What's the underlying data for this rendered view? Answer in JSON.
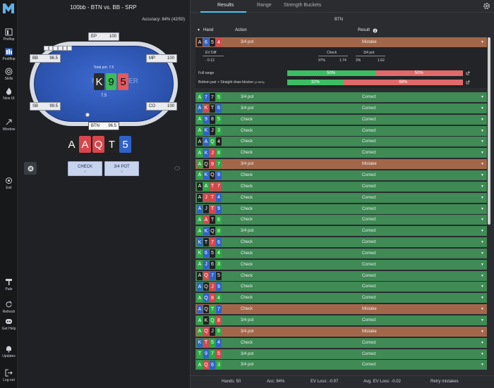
{
  "sidebar": {
    "items": [
      {
        "label": "Preflop",
        "icon": "preflop-icon"
      },
      {
        "label": "Postflop",
        "icon": "postflop-icon"
      },
      {
        "label": "Skills",
        "icon": "skills-icon"
      },
      {
        "label": "New UI",
        "icon": "flame-icon"
      },
      {
        "label": "Window",
        "icon": "window-icon"
      },
      {
        "label": "Exit",
        "icon": "exit-icon"
      },
      {
        "label": "Pale",
        "icon": "brush-icon"
      },
      {
        "label": "Refresh",
        "icon": "refresh-icon"
      },
      {
        "label": "Get Help",
        "icon": "discord-icon"
      },
      {
        "label": "Updates",
        "icon": "bell-icon"
      },
      {
        "label": "Log out",
        "icon": "logout-icon"
      }
    ]
  },
  "left": {
    "title": "100bb - BTN vs. BB - SRP",
    "accuracy_label": "Accuracy:",
    "accuracy_value": "84% (42/50)",
    "pot_label": "Total pot: 7.5",
    "pot_size": "7.5",
    "brand_left": "M",
    "brand_right": "ER",
    "board": [
      {
        "rank": "K",
        "suit": "s",
        "color": "#2b2b2b"
      },
      {
        "rank": "9",
        "suit": "c",
        "color": "#3bbd5a"
      },
      {
        "rank": "5",
        "suit": "h",
        "color": "#e05a5f"
      }
    ],
    "seats": [
      {
        "pos": "EP",
        "stack": "100"
      },
      {
        "pos": "MP",
        "stack": "100"
      },
      {
        "pos": "CO",
        "stack": "100"
      },
      {
        "pos": "BTN",
        "stack": "96.5"
      },
      {
        "pos": "SB",
        "stack": "99.5"
      },
      {
        "pos": "BB",
        "stack": "96.5"
      }
    ],
    "hand": [
      {
        "rank": "A",
        "color": "#222222"
      },
      {
        "rank": "A",
        "color": "#d8464b"
      },
      {
        "rank": "Q",
        "color": "#d8464b"
      },
      {
        "rank": "T",
        "color": "#222222"
      },
      {
        "rank": "5",
        "color": "#2f62c8"
      }
    ],
    "actions": [
      {
        "label": "CHECK",
        "key": "1"
      },
      {
        "label": "3/4 POT",
        "key": "2"
      }
    ]
  },
  "right": {
    "tabs": [
      "Results",
      "Range",
      "Strength Buckets"
    ],
    "active_tab": "Results",
    "section_label": "BTN",
    "headers": {
      "hand": "Hand",
      "action": "Action",
      "result": "Result"
    },
    "detail": {
      "ev_diff_label": "EV Diff",
      "ev_diff_value": "- 0.12",
      "check_label": "Check",
      "check_freq": "97%",
      "check_ev": "1.74",
      "pot_label": "3/4 pot",
      "pot_freq": "3%",
      "pot_ev": "1.62",
      "full_range_label": "Full range",
      "full_range_green": "50%",
      "full_range_red": "50%",
      "bucket_label": "Bottom pair + Straight draw blocker",
      "bucket_count": "(2.96%)",
      "bucket_green": "32%",
      "bucket_red": "68%"
    },
    "rows": [
      {
        "cards": [
          [
            "A",
            "s"
          ],
          [
            "6",
            "d"
          ],
          [
            "5",
            "s"
          ],
          [
            "4",
            "h"
          ]
        ],
        "action": "3/4 pot",
        "result": "Mistake",
        "type": "mistake"
      },
      {
        "cards": [
          [
            "A",
            "c"
          ],
          [
            "7",
            "d"
          ],
          [
            "7",
            "s"
          ],
          [
            "5",
            "c"
          ]
        ],
        "action": "3/4 pot",
        "result": "Correct",
        "type": "correct"
      },
      {
        "cards": [
          [
            "A",
            "d"
          ],
          [
            "K",
            "h"
          ],
          [
            "T",
            "s"
          ],
          [
            "6",
            "d"
          ]
        ],
        "action": "3/4 pot",
        "result": "Correct",
        "type": "correct"
      },
      {
        "cards": [
          [
            "A",
            "c"
          ],
          [
            "9",
            "d"
          ],
          [
            "8",
            "s"
          ],
          [
            "5",
            "c"
          ]
        ],
        "action": "Check",
        "result": "Correct",
        "type": "correct"
      },
      {
        "cards": [
          [
            "A",
            "c"
          ],
          [
            "K",
            "d"
          ],
          [
            "J",
            "s"
          ],
          [
            "3",
            "c"
          ]
        ],
        "action": "Check",
        "result": "Correct",
        "type": "correct"
      },
      {
        "cards": [
          [
            "A",
            "s"
          ],
          [
            "A",
            "d"
          ],
          [
            "Q",
            "c"
          ],
          [
            "4",
            "s"
          ]
        ],
        "action": "Check",
        "result": "Correct",
        "type": "correct"
      },
      {
        "cards": [
          [
            "A",
            "c"
          ],
          [
            "K",
            "d"
          ],
          [
            "J",
            "h"
          ],
          [
            "8",
            "c"
          ]
        ],
        "action": "Check",
        "result": "Correct",
        "type": "correct"
      },
      {
        "cards": [
          [
            "A",
            "c"
          ],
          [
            "Q",
            "s"
          ],
          [
            "9",
            "h"
          ],
          [
            "7",
            "c"
          ]
        ],
        "action": "3/4 pot",
        "result": "Mistake",
        "type": "mistake"
      },
      {
        "cards": [
          [
            "A",
            "c"
          ],
          [
            "K",
            "d"
          ],
          [
            "Q",
            "s"
          ],
          [
            "9",
            "d"
          ]
        ],
        "action": "Check",
        "result": "Correct",
        "type": "correct"
      },
      {
        "cards": [
          [
            "A",
            "s"
          ],
          [
            "A",
            "c"
          ],
          [
            "T",
            "h"
          ],
          [
            "7",
            "h"
          ]
        ],
        "action": "Check",
        "result": "Correct",
        "type": "correct"
      },
      {
        "cards": [
          [
            "A",
            "s"
          ],
          [
            "J",
            "h"
          ],
          [
            "T",
            "h"
          ],
          [
            "4",
            "d"
          ]
        ],
        "action": "Check",
        "result": "Correct",
        "type": "correct"
      },
      {
        "cards": [
          [
            "A",
            "d"
          ],
          [
            "J",
            "s"
          ],
          [
            "T",
            "h"
          ],
          [
            "9",
            "d"
          ]
        ],
        "action": "Check",
        "result": "Correct",
        "type": "correct"
      },
      {
        "cards": [
          [
            "A",
            "c"
          ],
          [
            "A",
            "h"
          ],
          [
            "T",
            "s"
          ],
          [
            "6",
            "c"
          ]
        ],
        "action": "Check",
        "result": "Correct",
        "type": "correct"
      },
      {
        "cards": [
          [
            "A",
            "c"
          ],
          [
            "K",
            "d"
          ],
          [
            "Q",
            "s"
          ],
          [
            "8",
            "c"
          ]
        ],
        "action": "3/4 pot",
        "result": "Correct",
        "type": "correct"
      },
      {
        "cards": [
          [
            "K",
            "d"
          ],
          [
            "T",
            "s"
          ],
          [
            "7",
            "h"
          ],
          [
            "6",
            "d"
          ]
        ],
        "action": "Check",
        "result": "Correct",
        "type": "correct"
      },
      {
        "cards": [
          [
            "K",
            "c"
          ],
          [
            "6",
            "d"
          ],
          [
            "5",
            "s"
          ],
          [
            "4",
            "c"
          ]
        ],
        "action": "Check",
        "result": "Correct",
        "type": "correct"
      },
      {
        "cards": [
          [
            "A",
            "c"
          ],
          [
            "J",
            "d"
          ],
          [
            "6",
            "s"
          ],
          [
            "3",
            "c"
          ]
        ],
        "action": "Check",
        "result": "Correct",
        "type": "correct"
      },
      {
        "cards": [
          [
            "A",
            "s"
          ],
          [
            "Q",
            "h"
          ],
          [
            "7",
            "d"
          ],
          [
            "5",
            "s"
          ]
        ],
        "action": "Check",
        "result": "Correct",
        "type": "correct"
      },
      {
        "cards": [
          [
            "A",
            "d"
          ],
          [
            "Q",
            "s"
          ],
          [
            "J",
            "h"
          ],
          [
            "9",
            "d"
          ]
        ],
        "action": "Check",
        "result": "Correct",
        "type": "correct"
      },
      {
        "cards": [
          [
            "A",
            "c"
          ],
          [
            "Q",
            "d"
          ],
          [
            "8",
            "h"
          ],
          [
            "4",
            "c"
          ]
        ],
        "action": "Check",
        "result": "Correct",
        "type": "correct"
      },
      {
        "cards": [
          [
            "A",
            "d"
          ],
          [
            "Q",
            "s"
          ],
          [
            "T",
            "c"
          ],
          [
            "7",
            "d"
          ]
        ],
        "action": "Check",
        "result": "Mistake",
        "type": "mistake"
      },
      {
        "cards": [
          [
            "A",
            "c"
          ],
          [
            "K",
            "s"
          ],
          [
            "Q",
            "c"
          ],
          [
            "8",
            "h"
          ]
        ],
        "action": "3/4 pot",
        "result": "Correct",
        "type": "correct"
      },
      {
        "cards": [
          [
            "A",
            "c"
          ],
          [
            "Q",
            "h"
          ],
          [
            "J",
            "s"
          ],
          [
            "6",
            "c"
          ]
        ],
        "action": "3/4 pot",
        "result": "Mistake",
        "type": "mistake"
      },
      {
        "cards": [
          [
            "K",
            "d"
          ],
          [
            "T",
            "h"
          ],
          [
            "5",
            "c"
          ],
          [
            "4",
            "d"
          ]
        ],
        "action": "Check",
        "result": "Correct",
        "type": "correct"
      },
      {
        "cards": [
          [
            "T",
            "c"
          ],
          [
            "9",
            "d"
          ],
          [
            "7",
            "c"
          ],
          [
            "5",
            "h"
          ]
        ],
        "action": "3/4 pot",
        "result": "Correct",
        "type": "correct"
      },
      {
        "cards": [
          [
            "A",
            "c"
          ],
          [
            "Q",
            "h"
          ],
          [
            "6",
            "d"
          ],
          [
            "3",
            "c"
          ]
        ],
        "action": "3/4 pot",
        "result": "Correct",
        "type": "correct"
      }
    ],
    "footer": {
      "hands": "Hands: 50",
      "acc": "Acc: 84%",
      "ev_loss": "EV Loss: -0.97",
      "avg_ev_loss": "Avg. EV Loss: -0.02",
      "retry": "Retry mistakes"
    }
  }
}
